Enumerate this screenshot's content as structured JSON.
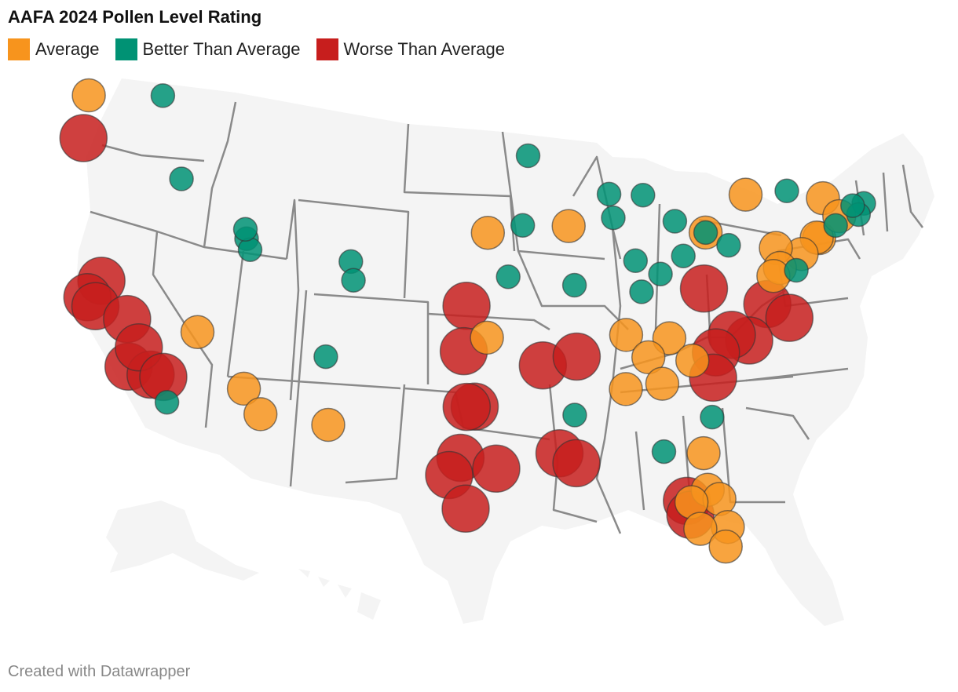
{
  "title": "AAFA 2024 Pollen Level Rating",
  "legend": [
    {
      "label": "Average",
      "color": "#f7941d"
    },
    {
      "label": "Better Than Average",
      "color": "#009274"
    },
    {
      "label": "Worse Than Average",
      "color": "#c71e1d"
    }
  ],
  "credit": "Created with Datawrapper",
  "map": {
    "background_color": "#f4f4f4",
    "border_color": "#8a8a8a",
    "bubble_sizes": {
      "Average": "medium",
      "Better Than Average": "small",
      "Worse Than Average": "large"
    },
    "cities": [
      {
        "lat": 47.66,
        "lon": -117.43,
        "rating": "Better Than Average"
      },
      {
        "lat": 43.62,
        "lon": -116.2,
        "rating": "Better Than Average"
      },
      {
        "lat": 40.76,
        "lon": -111.89,
        "rating": "Better Than Average"
      },
      {
        "lat": 40.23,
        "lon": -111.66,
        "rating": "Better Than Average"
      },
      {
        "lat": 41.22,
        "lon": -111.97,
        "rating": "Better Than Average"
      },
      {
        "lat": 39.74,
        "lon": -104.99,
        "rating": "Better Than Average"
      },
      {
        "lat": 38.83,
        "lon": -104.82,
        "rating": "Better Than Average"
      },
      {
        "lat": 35.08,
        "lon": -106.65,
        "rating": "Better Than Average"
      },
      {
        "lat": 32.72,
        "lon": -117.16,
        "rating": "Better Than Average"
      },
      {
        "lat": 44.98,
        "lon": -93.27,
        "rating": "Better Than Average"
      },
      {
        "lat": 41.59,
        "lon": -93.62,
        "rating": "Better Than Average"
      },
      {
        "lat": 43.04,
        "lon": -87.91,
        "rating": "Better Than Average"
      },
      {
        "lat": 41.88,
        "lon": -87.63,
        "rating": "Better Than Average"
      },
      {
        "lat": 42.96,
        "lon": -85.67,
        "rating": "Better Than Average"
      },
      {
        "lat": 39.1,
        "lon": -94.58,
        "rating": "Better Than Average"
      },
      {
        "lat": 38.63,
        "lon": -90.2,
        "rating": "Better Than Average"
      },
      {
        "lat": 39.77,
        "lon": -86.16,
        "rating": "Better Than Average"
      },
      {
        "lat": 38.25,
        "lon": -85.76,
        "rating": "Better Than Average"
      },
      {
        "lat": 39.1,
        "lon": -84.51,
        "rating": "Better Than Average"
      },
      {
        "lat": 41.66,
        "lon": -83.56,
        "rating": "Better Than Average"
      },
      {
        "lat": 41.08,
        "lon": -81.52,
        "rating": "Better Than Average"
      },
      {
        "lat": 40.44,
        "lon": -80.0,
        "rating": "Better Than Average"
      },
      {
        "lat": 39.96,
        "lon": -83.0,
        "rating": "Better Than Average"
      },
      {
        "lat": 43.04,
        "lon": -76.15,
        "rating": "Better Than Average"
      },
      {
        "lat": 42.36,
        "lon": -71.06,
        "rating": "Better Than Average"
      },
      {
        "lat": 41.82,
        "lon": -71.41,
        "rating": "Better Than Average"
      },
      {
        "lat": 42.26,
        "lon": -71.8,
        "rating": "Better Than Average"
      },
      {
        "lat": 41.31,
        "lon": -72.92,
        "rating": "Better Than Average"
      },
      {
        "lat": 39.16,
        "lon": -75.52,
        "rating": "Better Than Average"
      },
      {
        "lat": 32.08,
        "lon": -81.09,
        "rating": "Better Than Average"
      },
      {
        "lat": 30.44,
        "lon": -84.28,
        "rating": "Better Than Average"
      },
      {
        "lat": 32.3,
        "lon": -90.18,
        "rating": "Better Than Average"
      },
      {
        "lat": 47.61,
        "lon": -122.33,
        "rating": "Average"
      },
      {
        "lat": 36.17,
        "lon": -115.14,
        "rating": "Average"
      },
      {
        "lat": 33.45,
        "lon": -112.07,
        "rating": "Average"
      },
      {
        "lat": 32.22,
        "lon": -110.97,
        "rating": "Average"
      },
      {
        "lat": 31.76,
        "lon": -106.49,
        "rating": "Average"
      },
      {
        "lat": 41.26,
        "lon": -95.93,
        "rating": "Average"
      },
      {
        "lat": 36.15,
        "lon": -95.99,
        "rating": "Average"
      },
      {
        "lat": 41.52,
        "lon": -90.58,
        "rating": "Average"
      },
      {
        "lat": 42.89,
        "lon": -78.88,
        "rating": "Average"
      },
      {
        "lat": 42.65,
        "lon": -73.76,
        "rating": "Average"
      },
      {
        "lat": 41.08,
        "lon": -81.52,
        "rating": "Average"
      },
      {
        "lat": 40.71,
        "lon": -74.01,
        "rating": "Average"
      },
      {
        "lat": 40.74,
        "lon": -74.17,
        "rating": "Average"
      },
      {
        "lat": 41.76,
        "lon": -72.68,
        "rating": "Average"
      },
      {
        "lat": 39.95,
        "lon": -75.17,
        "rating": "Average"
      },
      {
        "lat": 40.27,
        "lon": -76.88,
        "rating": "Average"
      },
      {
        "lat": 39.29,
        "lon": -76.61,
        "rating": "Average"
      },
      {
        "lat": 38.9,
        "lon": -77.04,
        "rating": "Average"
      },
      {
        "lat": 36.16,
        "lon": -86.78,
        "rating": "Average"
      },
      {
        "lat": 35.96,
        "lon": -83.92,
        "rating": "Average"
      },
      {
        "lat": 35.05,
        "lon": -85.31,
        "rating": "Average"
      },
      {
        "lat": 33.52,
        "lon": -86.8,
        "rating": "Average"
      },
      {
        "lat": 33.75,
        "lon": -84.39,
        "rating": "Average"
      },
      {
        "lat": 34.85,
        "lon": -82.4,
        "rating": "Average"
      },
      {
        "lat": 30.33,
        "lon": -81.66,
        "rating": "Average"
      },
      {
        "lat": 28.54,
        "lon": -81.38,
        "rating": "Average"
      },
      {
        "lat": 28.08,
        "lon": -80.61,
        "rating": "Average"
      },
      {
        "lat": 27.95,
        "lon": -82.46,
        "rating": "Average"
      },
      {
        "lat": 26.71,
        "lon": -80.05,
        "rating": "Average"
      },
      {
        "lat": 26.64,
        "lon": -81.87,
        "rating": "Average"
      },
      {
        "lat": 25.76,
        "lon": -80.19,
        "rating": "Average"
      },
      {
        "lat": 45.52,
        "lon": -122.68,
        "rating": "Worse Than Average"
      },
      {
        "lat": 38.58,
        "lon": -121.49,
        "rating": "Worse Than Average"
      },
      {
        "lat": 37.77,
        "lon": -122.42,
        "rating": "Worse Than Average"
      },
      {
        "lat": 37.34,
        "lon": -121.89,
        "rating": "Worse Than Average"
      },
      {
        "lat": 36.74,
        "lon": -119.79,
        "rating": "Worse Than Average"
      },
      {
        "lat": 34.42,
        "lon": -119.7,
        "rating": "Worse Than Average"
      },
      {
        "lat": 34.05,
        "lon": -118.24,
        "rating": "Worse Than Average"
      },
      {
        "lat": 35.37,
        "lon": -119.02,
        "rating": "Worse Than Average"
      },
      {
        "lat": 33.95,
        "lon": -117.4,
        "rating": "Worse Than Average"
      },
      {
        "lat": 37.69,
        "lon": -97.34,
        "rating": "Worse Than Average"
      },
      {
        "lat": 35.47,
        "lon": -97.52,
        "rating": "Worse Than Average"
      },
      {
        "lat": 32.78,
        "lon": -96.8,
        "rating": "Worse Than Average"
      },
      {
        "lat": 32.76,
        "lon": -97.33,
        "rating": "Worse Than Average"
      },
      {
        "lat": 34.75,
        "lon": -92.29,
        "rating": "Worse Than Average"
      },
      {
        "lat": 35.15,
        "lon": -90.05,
        "rating": "Worse Than Average"
      },
      {
        "lat": 30.27,
        "lon": -97.74,
        "rating": "Worse Than Average"
      },
      {
        "lat": 29.42,
        "lon": -98.49,
        "rating": "Worse Than Average"
      },
      {
        "lat": 29.76,
        "lon": -95.37,
        "rating": "Worse Than Average"
      },
      {
        "lat": 27.8,
        "lon": -97.4,
        "rating": "Worse Than Average"
      },
      {
        "lat": 30.45,
        "lon": -91.19,
        "rating": "Worse Than Average"
      },
      {
        "lat": 29.95,
        "lon": -90.07,
        "rating": "Worse Than Average"
      },
      {
        "lat": 38.35,
        "lon": -81.63,
        "rating": "Worse Than Average"
      },
      {
        "lat": 37.54,
        "lon": -77.44,
        "rating": "Worse Than Average"
      },
      {
        "lat": 36.85,
        "lon": -75.98,
        "rating": "Worse Than Average"
      },
      {
        "lat": 35.78,
        "lon": -78.64,
        "rating": "Worse Than Average"
      },
      {
        "lat": 36.07,
        "lon": -79.79,
        "rating": "Worse Than Average"
      },
      {
        "lat": 35.23,
        "lon": -80.84,
        "rating": "Worse Than Average"
      },
      {
        "lat": 34.0,
        "lon": -81.03,
        "rating": "Worse Than Average"
      },
      {
        "lat": 28.02,
        "lon": -82.76,
        "rating": "Worse Than Average"
      },
      {
        "lat": 27.34,
        "lon": -82.53,
        "rating": "Worse Than Average"
      }
    ]
  }
}
